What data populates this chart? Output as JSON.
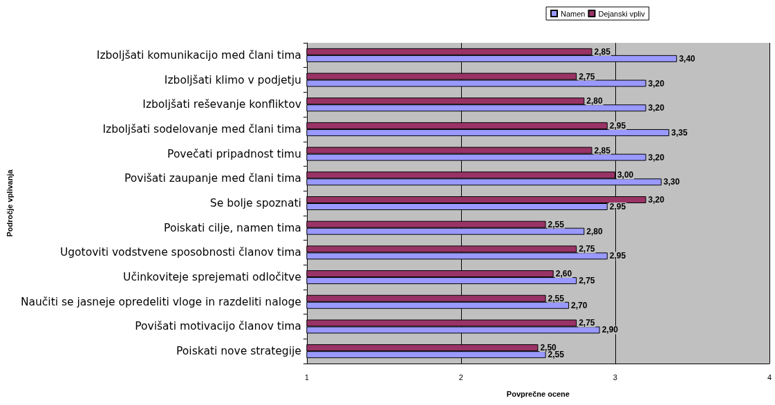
{
  "chart_data": {
    "type": "bar",
    "orientation": "horizontal",
    "xlabel": "Povprečne ocene",
    "ylabel": "Področje vplivanja",
    "categories": [
      "Izboljšati komunikacijo med člani tima",
      "Izboljšati klimo v podjetju",
      "Izboljšati reševanje konfliktov",
      "Izboljšati sodelovanje med člani tima",
      "Povečati pripadnost timu",
      "Povišati zaupanje med člani tima",
      "Se bolje spoznati",
      "Poiskati cilje, namen tima",
      "Ugotoviti vodstvene sposobnosti članov tima",
      "Učinkoviteje sprejemati odločitve",
      "Naučiti se jasneje opredeliti vloge in razdeliti naloge",
      "Povišati motivacijo članov tima",
      "Poiskati nove strategije"
    ],
    "series": [
      {
        "name": "Namen",
        "color": "#9999ff",
        "values": [
          3.4,
          3.2,
          3.2,
          3.35,
          3.2,
          3.3,
          2.95,
          2.8,
          2.95,
          2.75,
          2.7,
          2.9,
          2.55
        ],
        "value_labels": [
          "3,40",
          "3,20",
          "3,20",
          "3,35",
          "3,20",
          "3,30",
          "2,95",
          "2,80",
          "2,95",
          "2,75",
          "2,70",
          "2,90",
          "2,55"
        ]
      },
      {
        "name": "Dejanski vpliv",
        "color": "#993366",
        "values": [
          2.85,
          2.75,
          2.8,
          2.95,
          2.85,
          3.0,
          3.2,
          2.55,
          2.75,
          2.6,
          2.55,
          2.75,
          2.5
        ],
        "value_labels": [
          "2,85",
          "2,75",
          "2,80",
          "2,95",
          "2,85",
          "3,00",
          "3,20",
          "2,55",
          "2,75",
          "2,60",
          "2,55",
          "2,75",
          "2,50"
        ]
      }
    ],
    "xlim": [
      1,
      4
    ],
    "xticks": [
      1,
      2,
      3,
      4
    ],
    "grid": "x",
    "legend": "top"
  }
}
